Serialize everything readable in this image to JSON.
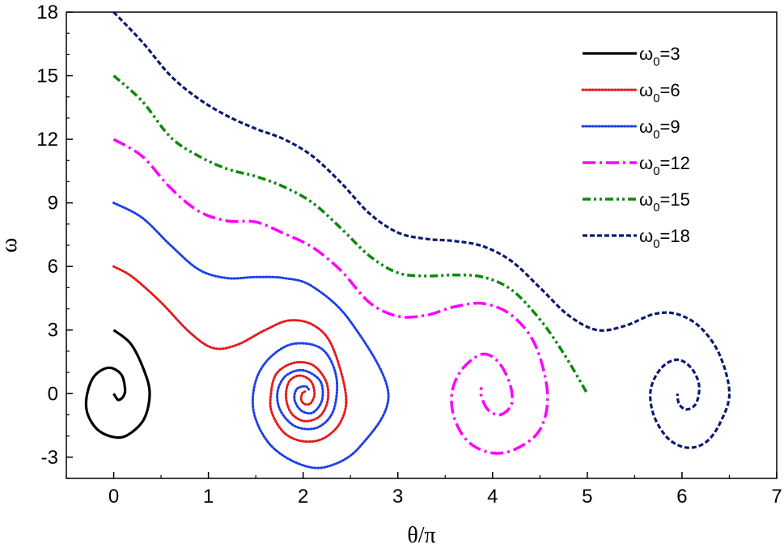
{
  "chart_data": {
    "type": "line",
    "title": "",
    "xlabel": "θ/π",
    "ylabel": "ω",
    "xlim": [
      -0.5,
      7
    ],
    "ylim": [
      -4,
      18
    ],
    "x_ticks": [
      "0",
      "1",
      "2",
      "3",
      "4",
      "5",
      "6",
      "7"
    ],
    "y_ticks": [
      "-3",
      "0",
      "3",
      "6",
      "9",
      "12",
      "15",
      "18"
    ],
    "grid": false,
    "legend_position": "top-right",
    "series": [
      {
        "name": "ω0=3",
        "legend_base": "ω",
        "legend_sub": "0",
        "legend_value": "=3",
        "color": "#000000",
        "line_style": "solid",
        "points": [
          [
            0,
            3
          ],
          [
            0.18,
            2.35
          ],
          [
            0.32,
            1.1
          ],
          [
            0.38,
            0
          ],
          [
            0.32,
            -1.2
          ],
          [
            0.15,
            -1.95
          ],
          [
            0,
            -2.05
          ],
          [
            -0.17,
            -1.7
          ],
          [
            -0.28,
            -0.9
          ],
          [
            -0.28,
            0
          ],
          [
            -0.2,
            0.85
          ],
          [
            -0.05,
            1.22
          ],
          [
            0.08,
            0.9
          ],
          [
            0.12,
            0.2
          ],
          [
            0.1,
            -0.15
          ],
          [
            0.05,
            -0.3
          ],
          [
            0.02,
            -0.15
          ],
          [
            0,
            0
          ]
        ]
      },
      {
        "name": "ω0=6",
        "legend_base": "ω",
        "legend_sub": "0",
        "legend_value": "=6",
        "color": "#e41a1c",
        "line_style": "dotted",
        "points": [
          [
            0,
            6
          ],
          [
            0.2,
            5.5
          ],
          [
            0.5,
            4.3
          ],
          [
            0.8,
            2.9
          ],
          [
            1.05,
            2.15
          ],
          [
            1.3,
            2.3
          ],
          [
            1.6,
            3.0
          ],
          [
            1.85,
            3.45
          ],
          [
            2.1,
            3.25
          ],
          [
            2.3,
            2.3
          ],
          [
            2.45,
            0
          ],
          [
            2.4,
            -1.3
          ],
          [
            2.22,
            -2.1
          ],
          [
            2.0,
            -2.25
          ],
          [
            1.8,
            -1.85
          ],
          [
            1.67,
            -0.9
          ],
          [
            1.66,
            0
          ],
          [
            1.72,
            0.95
          ],
          [
            1.9,
            1.45
          ],
          [
            2.1,
            1.35
          ],
          [
            2.24,
            0.6
          ],
          [
            2.26,
            -0.3
          ],
          [
            2.18,
            -1.05
          ],
          [
            2.02,
            -1.3
          ],
          [
            1.88,
            -0.95
          ],
          [
            1.82,
            -0.2
          ],
          [
            1.85,
            0.55
          ],
          [
            1.96,
            0.85
          ],
          [
            2.08,
            0.6
          ],
          [
            2.12,
            0
          ],
          [
            2.08,
            -0.45
          ],
          [
            2.02,
            -0.5
          ],
          [
            1.98,
            -0.3
          ],
          [
            1.99,
            0
          ],
          [
            2.02,
            0.1
          ]
        ]
      },
      {
        "name": "ω0=9",
        "legend_base": "ω",
        "legend_sub": "0",
        "legend_value": "=9",
        "color": "#1e3fe8",
        "line_style": "dotted",
        "points": [
          [
            0,
            9
          ],
          [
            0.3,
            8.3
          ],
          [
            0.6,
            7.0
          ],
          [
            0.9,
            5.85
          ],
          [
            1.2,
            5.45
          ],
          [
            1.5,
            5.5
          ],
          [
            1.8,
            5.45
          ],
          [
            2.1,
            5.05
          ],
          [
            2.5,
            3.4
          ],
          [
            2.9,
            0
          ],
          [
            2.6,
            -2.5
          ],
          [
            2.25,
            -3.45
          ],
          [
            1.95,
            -3.3
          ],
          [
            1.65,
            -2.4
          ],
          [
            1.48,
            -0.9
          ],
          [
            1.5,
            0.6
          ],
          [
            1.65,
            1.7
          ],
          [
            1.9,
            2.35
          ],
          [
            2.2,
            2.1
          ],
          [
            2.35,
            0.8
          ],
          [
            2.32,
            -0.8
          ],
          [
            2.15,
            -1.6
          ],
          [
            1.92,
            -1.55
          ],
          [
            1.76,
            -0.8
          ],
          [
            1.73,
            0.1
          ],
          [
            1.82,
            0.85
          ],
          [
            2.0,
            1.1
          ],
          [
            2.18,
            0.6
          ],
          [
            2.2,
            -0.3
          ],
          [
            2.1,
            -0.9
          ],
          [
            1.98,
            -0.8
          ],
          [
            1.91,
            -0.3
          ],
          [
            1.93,
            0.2
          ],
          [
            2.02,
            0.35
          ],
          [
            2.06,
            0.2
          ]
        ]
      },
      {
        "name": "ω0=12",
        "legend_base": "ω",
        "legend_sub": "0",
        "legend_value": "=12",
        "color": "#ff00ff",
        "line_style": "dash-dot",
        "points": [
          [
            0,
            12
          ],
          [
            0.3,
            11.2
          ],
          [
            0.6,
            9.7
          ],
          [
            0.9,
            8.6
          ],
          [
            1.2,
            8.15
          ],
          [
            1.5,
            8.1
          ],
          [
            1.8,
            7.55
          ],
          [
            2.1,
            6.9
          ],
          [
            2.4,
            5.8
          ],
          [
            2.7,
            4.3
          ],
          [
            3.0,
            3.65
          ],
          [
            3.3,
            3.7
          ],
          [
            3.6,
            4.1
          ],
          [
            3.9,
            4.25
          ],
          [
            4.2,
            3.7
          ],
          [
            4.45,
            2.3
          ],
          [
            4.58,
            0
          ],
          [
            4.5,
            -1.7
          ],
          [
            4.25,
            -2.6
          ],
          [
            4.0,
            -2.8
          ],
          [
            3.75,
            -2.3
          ],
          [
            3.6,
            -1.2
          ],
          [
            3.57,
            0
          ],
          [
            3.67,
            1.1
          ],
          [
            3.88,
            1.85
          ],
          [
            4.05,
            1.55
          ],
          [
            4.18,
            0.5
          ],
          [
            4.2,
            -0.5
          ],
          [
            4.08,
            -1.0
          ],
          [
            3.95,
            -0.75
          ],
          [
            3.88,
            -0.1
          ],
          [
            3.88,
            0.3
          ]
        ]
      },
      {
        "name": "ω0=15",
        "legend_base": "ω",
        "legend_sub": "0",
        "legend_value": "=15",
        "color": "#0a8a0a",
        "line_style": "dash-dot-dot",
        "points": [
          [
            0,
            15
          ],
          [
            0.3,
            13.8
          ],
          [
            0.6,
            12.1
          ],
          [
            0.9,
            11.2
          ],
          [
            1.2,
            10.6
          ],
          [
            1.5,
            10.25
          ],
          [
            1.8,
            9.75
          ],
          [
            2.1,
            9.0
          ],
          [
            2.4,
            7.8
          ],
          [
            2.7,
            6.5
          ],
          [
            3.0,
            5.7
          ],
          [
            3.3,
            5.55
          ],
          [
            3.6,
            5.6
          ],
          [
            3.9,
            5.5
          ],
          [
            4.2,
            4.9
          ],
          [
            4.5,
            3.5
          ],
          [
            4.75,
            1.9
          ],
          [
            5.0,
            0
          ]
        ]
      },
      {
        "name": "ω0=18",
        "legend_base": "ω",
        "legend_sub": "0",
        "legend_value": "=18",
        "color": "#0d1a6e",
        "line_style": "dashed",
        "points": [
          [
            0,
            18
          ],
          [
            0.3,
            16.6
          ],
          [
            0.6,
            15.0
          ],
          [
            0.9,
            13.9
          ],
          [
            1.2,
            13.1
          ],
          [
            1.5,
            12.5
          ],
          [
            1.8,
            12.0
          ],
          [
            2.1,
            11.2
          ],
          [
            2.4,
            9.95
          ],
          [
            2.7,
            8.5
          ],
          [
            3.0,
            7.6
          ],
          [
            3.3,
            7.3
          ],
          [
            3.6,
            7.2
          ],
          [
            3.9,
            6.95
          ],
          [
            4.2,
            6.25
          ],
          [
            4.5,
            5.0
          ],
          [
            4.8,
            3.7
          ],
          [
            5.1,
            3.0
          ],
          [
            5.4,
            3.2
          ],
          [
            5.7,
            3.75
          ],
          [
            5.95,
            3.75
          ],
          [
            6.2,
            3.1
          ],
          [
            6.4,
            1.8
          ],
          [
            6.5,
            0
          ],
          [
            6.4,
            -1.4
          ],
          [
            6.25,
            -2.3
          ],
          [
            6.05,
            -2.55
          ],
          [
            5.85,
            -2.1
          ],
          [
            5.7,
            -1.0
          ],
          [
            5.67,
            0.2
          ],
          [
            5.78,
            1.2
          ],
          [
            5.95,
            1.6
          ],
          [
            6.1,
            1.2
          ],
          [
            6.18,
            0.4
          ],
          [
            6.15,
            -0.45
          ],
          [
            6.05,
            -0.75
          ],
          [
            5.97,
            -0.5
          ],
          [
            5.95,
            0
          ]
        ]
      }
    ]
  }
}
